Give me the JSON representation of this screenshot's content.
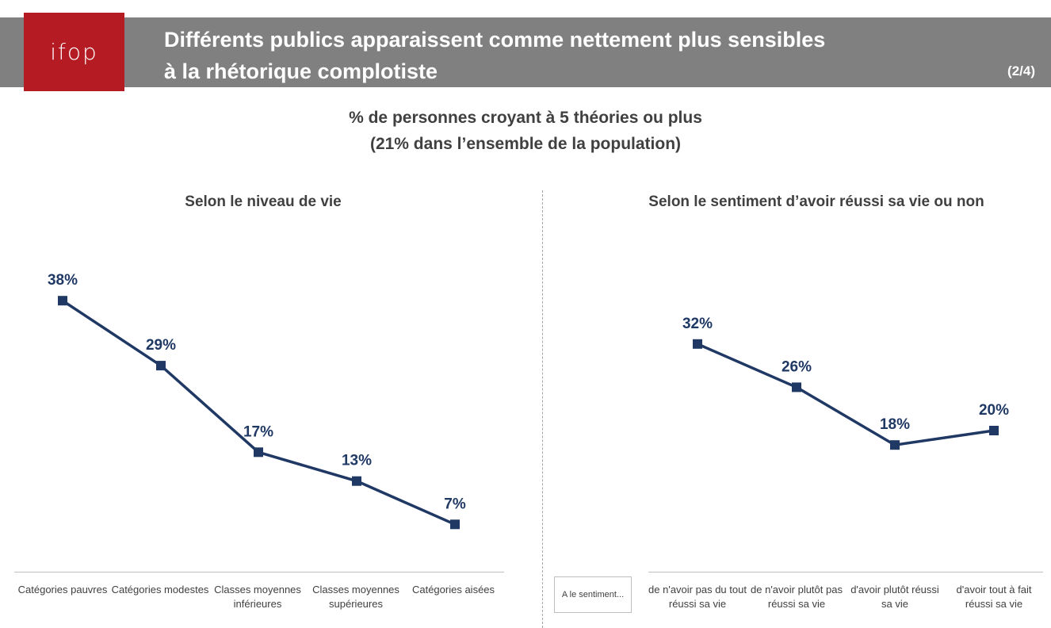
{
  "header": {
    "logo_text": "ifop",
    "title_line1": "Différents publics apparaissent comme nettement plus sensibles",
    "title_line2": "à la rhétorique complotiste",
    "page": "(2/4)"
  },
  "subtitle": {
    "line1": "% de personnes croyant à 5 théories ou plus",
    "line2": "(21% dans l’ensemble de la population)"
  },
  "colors": {
    "line": "#1f3864",
    "brand_red": "#b51b22",
    "header_gray": "#808080"
  },
  "chart_data": [
    {
      "type": "line",
      "title": "Selon le niveau de vie",
      "categories": [
        "Catégories pauvres",
        "Catégories modestes",
        "Classes moyennes inférieures",
        "Classes moyennes supérieures",
        "Catégories aisées"
      ],
      "values": [
        38,
        29,
        17,
        13,
        7
      ],
      "labels": [
        "38%",
        "29%",
        "17%",
        "13%",
        "7%"
      ]
    },
    {
      "type": "line",
      "title": "Selon le sentiment d’avoir réussi sa vie ou non",
      "row_header": "A le sentiment...",
      "categories": [
        "de n'avoir pas du tout réussi sa vie",
        "de n'avoir plutôt pas réussi sa vie",
        "d'avoir plutôt réussi sa vie",
        "d'avoir tout à fait réussi sa vie"
      ],
      "values": [
        32,
        26,
        18,
        20
      ],
      "labels": [
        "32%",
        "26%",
        "18%",
        "20%"
      ]
    }
  ]
}
